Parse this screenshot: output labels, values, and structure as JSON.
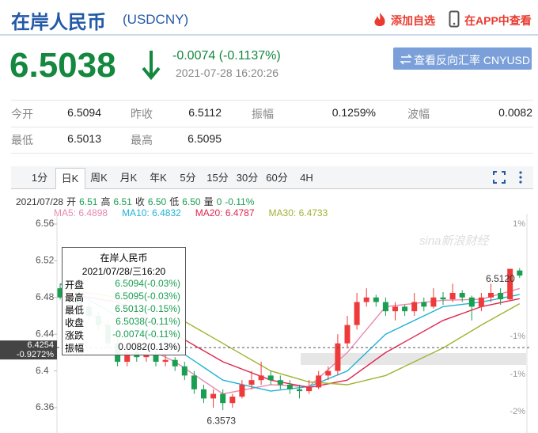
{
  "header": {
    "title": "在岸人民币",
    "code": "(USDCNY)",
    "actions": [
      "添加自选",
      "在APP中查看"
    ]
  },
  "quote": {
    "price": "6.5038",
    "change": "-0.0074 (-0.1137%)",
    "time": "2021-07-28 16:20:26",
    "button": "查看反向汇率 CNYUSD"
  },
  "stats": {
    "rows": [
      [
        [
          "今开",
          "6.5094"
        ],
        [
          "昨收",
          "6.5112"
        ],
        [
          "振幅",
          "0.1259%"
        ],
        [
          "波幅",
          "0.0082"
        ]
      ],
      [
        [
          "最低",
          "6.5013"
        ],
        [
          "最高",
          "6.5095"
        ]
      ]
    ]
  },
  "tabs": {
    "items": [
      "1分",
      "日K",
      "周K",
      "月K",
      "年K",
      "5分",
      "15分",
      "30分",
      "60分",
      "4H"
    ],
    "selected": 1
  },
  "info": {
    "date": "2021/07/28",
    "items": [
      [
        "开",
        "6.51"
      ],
      [
        "高",
        "6.51"
      ],
      [
        "收",
        "6.50"
      ],
      [
        "低",
        "6.50"
      ],
      [
        "量",
        "0"
      ]
    ],
    "change": "-0.11%"
  },
  "tooltip": {
    "title": "在岸人民币",
    "time": "2021/07/28/三16:20",
    "rows": [
      [
        "开盘",
        "6.5094(-0.03%)"
      ],
      [
        "最高",
        "6.5095(-0.03%)"
      ],
      [
        "最低",
        "6.5013(-0.15%)"
      ],
      [
        "收盘",
        "6.5038(-0.11%)"
      ],
      [
        "涨跌",
        "-0.0074(-0.11%)"
      ],
      [
        "振幅",
        "0.0082(0.13%)"
      ]
    ]
  },
  "chart_data": {
    "type": "candlestick",
    "up_color": "#ee3a3a",
    "down_color": "#1a9e52",
    "open": [
      6.49,
      6.48,
      6.485,
      6.47,
      6.46,
      6.45,
      6.43,
      6.41,
      6.42,
      6.415,
      6.418,
      6.41,
      6.412,
      6.405,
      6.395,
      6.38,
      6.37,
      6.375,
      6.365,
      6.372,
      6.385,
      6.39,
      6.395,
      6.39,
      6.385,
      6.38,
      6.378,
      6.382,
      6.395,
      6.4,
      6.43,
      6.45,
      6.475,
      6.48,
      6.475,
      6.465,
      6.47,
      6.465,
      6.475,
      6.47,
      6.48,
      6.478,
      6.485,
      6.48,
      6.47,
      6.48,
      6.485,
      6.478,
      6.5094
    ],
    "high": [
      6.495,
      6.49,
      6.488,
      6.475,
      6.465,
      6.455,
      6.435,
      6.425,
      6.43,
      6.42,
      6.422,
      6.418,
      6.415,
      6.41,
      6.4,
      6.385,
      6.38,
      6.38,
      6.375,
      6.39,
      6.4,
      6.41,
      6.4,
      6.395,
      6.39,
      6.385,
      6.39,
      6.4,
      6.405,
      6.44,
      6.46,
      6.485,
      6.49,
      6.483,
      6.48,
      6.475,
      6.472,
      6.485,
      6.48,
      6.49,
      6.486,
      6.495,
      6.488,
      6.482,
      6.485,
      6.495,
      6.49,
      6.511,
      6.512
    ],
    "low": [
      6.478,
      6.475,
      6.465,
      6.455,
      6.445,
      6.425,
      6.405,
      6.405,
      6.41,
      6.41,
      6.405,
      6.405,
      6.4,
      6.39,
      6.375,
      6.365,
      6.36,
      6.3573,
      6.36,
      6.37,
      6.38,
      6.385,
      6.385,
      6.38,
      6.375,
      6.37,
      6.375,
      6.38,
      6.39,
      6.395,
      6.425,
      6.445,
      6.47,
      6.47,
      6.46,
      6.455,
      6.46,
      6.46,
      6.465,
      6.468,
      6.472,
      6.475,
      6.475,
      6.455,
      6.465,
      6.475,
      6.472,
      6.476,
      6.5013
    ],
    "close": [
      6.48,
      6.485,
      6.47,
      6.46,
      6.45,
      6.43,
      6.41,
      6.42,
      6.415,
      6.418,
      6.41,
      6.412,
      6.405,
      6.395,
      6.38,
      6.37,
      6.375,
      6.365,
      6.372,
      6.385,
      6.39,
      6.395,
      6.39,
      6.385,
      6.38,
      6.378,
      6.382,
      6.395,
      6.4,
      6.43,
      6.45,
      6.475,
      6.48,
      6.475,
      6.465,
      6.47,
      6.465,
      6.475,
      6.47,
      6.48,
      6.478,
      6.485,
      6.48,
      6.47,
      6.48,
      6.485,
      6.478,
      6.5112,
      6.5038
    ],
    "series": [
      {
        "name": "MA5",
        "color": "#e889b0",
        "x": [
          0,
          6,
          12,
          17,
          22,
          26,
          30,
          34,
          40,
          44,
          48
        ],
        "values": [
          6.49,
          6.44,
          6.41,
          6.375,
          6.385,
          6.383,
          6.42,
          6.47,
          6.477,
          6.478,
          6.4898
        ]
      },
      {
        "name": "MA10",
        "color": "#21b2d4",
        "x": [
          0,
          6,
          12,
          17,
          22,
          26,
          30,
          34,
          40,
          44,
          48
        ],
        "values": [
          6.495,
          6.46,
          6.425,
          6.39,
          6.378,
          6.383,
          6.4,
          6.44,
          6.47,
          6.475,
          6.4832
        ]
      },
      {
        "name": "MA20",
        "color": "#e0264f",
        "x": [
          0,
          6,
          12,
          17,
          22,
          26,
          30,
          34,
          40,
          44,
          48
        ],
        "values": [
          6.485,
          6.475,
          6.44,
          6.41,
          6.39,
          6.382,
          6.39,
          6.42,
          6.455,
          6.47,
          6.4787
        ]
      },
      {
        "name": "MA30",
        "color": "#a3b232",
        "x": [
          0,
          6,
          12,
          17,
          22,
          26,
          30,
          34,
          40,
          44,
          48
        ],
        "values": [
          6.49,
          6.48,
          6.46,
          6.43,
          6.4,
          6.388,
          6.385,
          6.395,
          6.425,
          6.45,
          6.4733
        ]
      }
    ],
    "ylim": [
      6.3324,
      6.5712
    ],
    "yticks": [
      6.56,
      6.52,
      6.48,
      6.44,
      6.4,
      6.36
    ],
    "right_labels": [
      "1%",
      "-1%",
      "-1%",
      "-2%"
    ],
    "max": {
      "value": 6.512,
      "label": "6.5120"
    },
    "min": {
      "value": 6.3573
    },
    "crosshair": {
      "value": 6.4254,
      "change": "-0.9272%"
    },
    "watermark": "sina新浪财经"
  }
}
